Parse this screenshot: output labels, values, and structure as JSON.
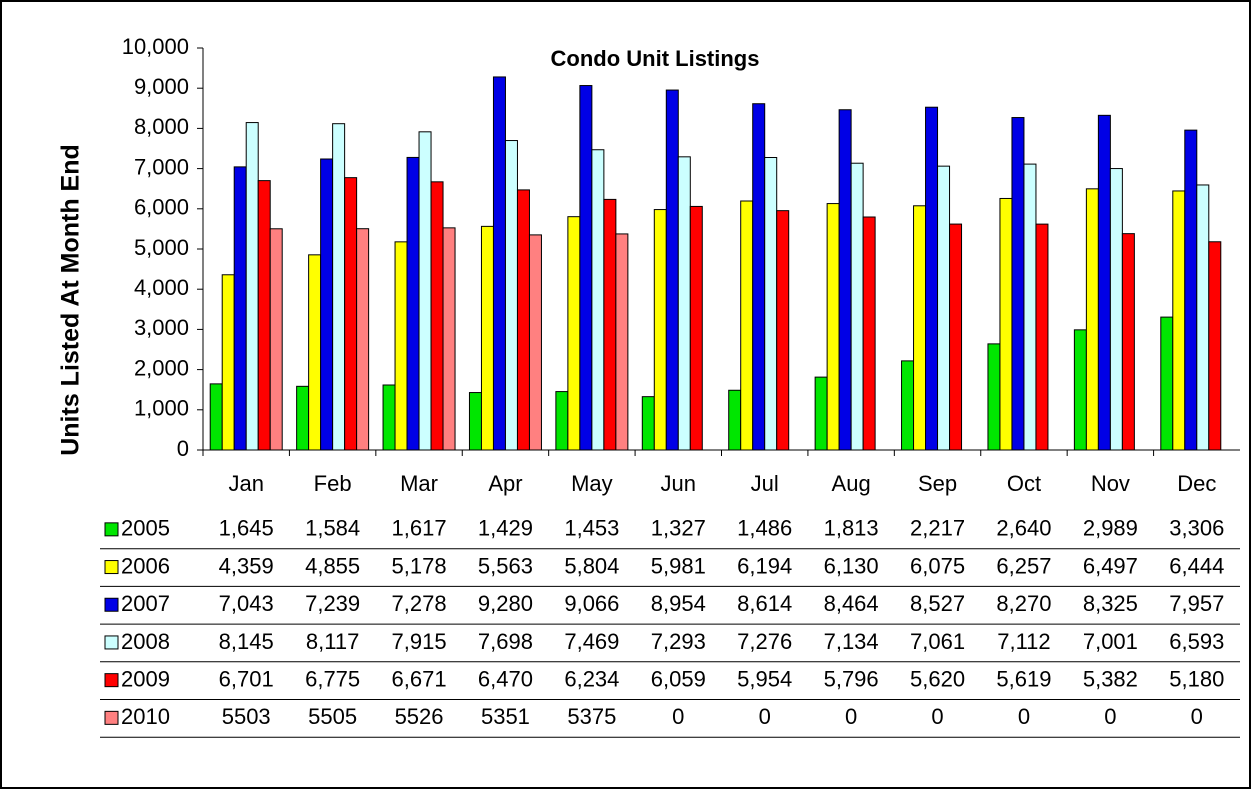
{
  "chart_data": {
    "type": "bar",
    "title": "Condo Unit Listings",
    "y_label": "Units Listed At Month End",
    "categories": [
      "Jan",
      "Feb",
      "Mar",
      "Apr",
      "May",
      "Jun",
      "Jul",
      "Aug",
      "Sep",
      "Oct",
      "Nov",
      "Dec"
    ],
    "series": [
      {
        "name": "2005",
        "color": "#00e600",
        "values": [
          1645,
          1584,
          1617,
          1429,
          1453,
          1327,
          1486,
          1813,
          2217,
          2640,
          2989,
          3306
        ],
        "value_labels": [
          "1,645",
          "1,584",
          "1,617",
          "1,429",
          "1,453",
          "1,327",
          "1,486",
          "1,813",
          "2,217",
          "2,640",
          "2,989",
          "3,306"
        ]
      },
      {
        "name": "2006",
        "color": "#ffff00",
        "values": [
          4359,
          4855,
          5178,
          5563,
          5804,
          5981,
          6194,
          6130,
          6075,
          6257,
          6497,
          6444
        ],
        "value_labels": [
          "4,359",
          "4,855",
          "5,178",
          "5,563",
          "5,804",
          "5,981",
          "6,194",
          "6,130",
          "6,075",
          "6,257",
          "6,497",
          "6,444"
        ]
      },
      {
        "name": "2007",
        "color": "#0000e6",
        "values": [
          7043,
          7239,
          7278,
          9280,
          9066,
          8954,
          8614,
          8464,
          8527,
          8270,
          8325,
          7957
        ],
        "value_labels": [
          "7,043",
          "7,239",
          "7,278",
          "9,280",
          "9,066",
          "8,954",
          "8,614",
          "8,464",
          "8,527",
          "8,270",
          "8,325",
          "7,957"
        ]
      },
      {
        "name": "2008",
        "color": "#ccffff",
        "values": [
          8145,
          8117,
          7915,
          7698,
          7469,
          7293,
          7276,
          7134,
          7061,
          7112,
          7001,
          6593
        ],
        "value_labels": [
          "8,145",
          "8,117",
          "7,915",
          "7,698",
          "7,469",
          "7,293",
          "7,276",
          "7,134",
          "7,061",
          "7,112",
          "7,001",
          "6,593"
        ]
      },
      {
        "name": "2009",
        "color": "#ff0000",
        "values": [
          6701,
          6775,
          6671,
          6470,
          6234,
          6059,
          5954,
          5796,
          5620,
          5619,
          5382,
          5180
        ],
        "value_labels": [
          "6,701",
          "6,775",
          "6,671",
          "6,470",
          "6,234",
          "6,059",
          "5,954",
          "5,796",
          "5,620",
          "5,619",
          "5,382",
          "5,180"
        ]
      },
      {
        "name": "2010",
        "color": "#ff8080",
        "values": [
          5503,
          5505,
          5526,
          5351,
          5375,
          0,
          0,
          0,
          0,
          0,
          0,
          0
        ]
      }
    ],
    "ylim": [
      0,
      10000
    ],
    "yticks": [
      0,
      {
        "value": 1000,
        "label": "1,000"
      },
      {
        "value": 2000,
        "label": "2,000"
      },
      {
        "value": 3000,
        "label": "3,000"
      },
      {
        "value": 4000,
        "label": "4,000"
      },
      {
        "value": 5000,
        "label": "5,000"
      },
      {
        "value": 6000,
        "label": "6,000"
      },
      {
        "value": 7000,
        "label": "7,000"
      },
      {
        "value": 8000,
        "label": "8,000"
      },
      {
        "value": 9000,
        "label": "9,000"
      },
      {
        "value": 10000,
        "label": "10,000"
      }
    ],
    "grid": false
  }
}
